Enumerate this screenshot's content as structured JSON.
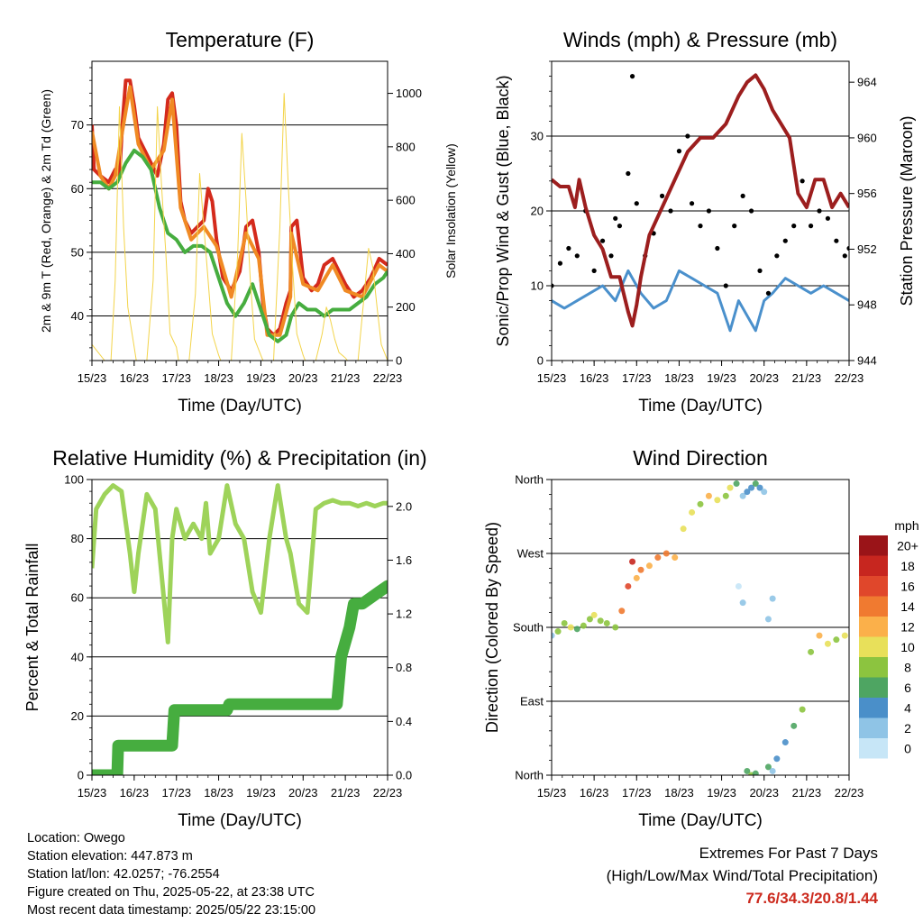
{
  "chart_data": [
    {
      "type": "line",
      "title": "Temperature (F)",
      "xlabel": "Time (Day/UTC)",
      "ylabel": "2m & 9m T (Red, Orange) & 2m Td (Green)",
      "ylabel_right": "Solar Insolation (Yellow)",
      "x_ticks": [
        "15/23",
        "16/23",
        "17/23",
        "18/23",
        "19/23",
        "20/23",
        "21/23",
        "22/23"
      ],
      "xlim": [
        0,
        7
      ],
      "ylim": [
        33,
        80
      ],
      "y_ticks": [
        40,
        50,
        60,
        70
      ],
      "ylim_right": [
        0,
        1120
      ],
      "y_ticks_right": [
        0,
        200,
        400,
        600,
        800,
        1000
      ],
      "grid": "horizontal at left ticks",
      "series": [
        {
          "axis": "left",
          "color": "#d42a1c",
          "x": [
            0,
            0.05,
            0.2,
            0.4,
            0.55,
            0.65,
            0.72,
            0.8,
            0.9,
            1.0,
            1.1,
            1.25,
            1.4,
            1.55,
            1.7,
            1.8,
            1.9,
            2.0,
            2.1,
            2.2,
            2.35,
            2.5,
            2.65,
            2.75,
            2.85,
            2.95,
            3.1,
            3.3,
            3.5,
            3.65,
            3.8,
            3.95,
            4.05,
            4.15,
            4.3,
            4.45,
            4.6,
            4.7,
            4.72,
            4.85,
            5.0,
            5.2,
            5.35,
            5.5,
            5.7,
            5.85,
            6.0,
            6.2,
            6.4,
            6.6,
            6.8,
            7.0
          ],
          "y": [
            70,
            63,
            62,
            61,
            63,
            62,
            70,
            77,
            77,
            73,
            68,
            66,
            64,
            62,
            67,
            74,
            75,
            70,
            58,
            55,
            53,
            54,
            55,
            60,
            58,
            52,
            46,
            44,
            47,
            54,
            55,
            50,
            42,
            38,
            37,
            38,
            42,
            44,
            54,
            55,
            46,
            44,
            45,
            48,
            49,
            47,
            45,
            43,
            44,
            46,
            49,
            48
          ]
        },
        {
          "axis": "left",
          "color": "#f08a24",
          "x": [
            0,
            0.2,
            0.4,
            0.55,
            0.72,
            0.9,
            1.1,
            1.4,
            1.7,
            1.9,
            2.1,
            2.35,
            2.65,
            2.95,
            3.3,
            3.65,
            3.95,
            4.15,
            4.45,
            4.7,
            4.72,
            5.0,
            5.35,
            5.7,
            6.0,
            6.4,
            6.8,
            7.0
          ],
          "y": [
            69,
            62,
            60,
            62,
            69,
            76,
            67,
            63,
            66,
            74,
            57,
            52,
            54,
            51,
            43,
            53,
            49,
            37,
            37,
            43,
            53,
            45,
            44,
            48,
            44,
            43,
            48,
            47
          ]
        },
        {
          "axis": "left",
          "color": "#46ad3f",
          "x": [
            0,
            0.2,
            0.4,
            0.6,
            0.8,
            1.0,
            1.2,
            1.4,
            1.6,
            1.8,
            2.0,
            2.2,
            2.4,
            2.6,
            2.8,
            3.0,
            3.2,
            3.4,
            3.6,
            3.8,
            4.0,
            4.2,
            4.4,
            4.6,
            4.72,
            4.9,
            5.1,
            5.3,
            5.5,
            5.7,
            5.9,
            6.1,
            6.3,
            6.5,
            6.7,
            6.9,
            7.0
          ],
          "y": [
            61,
            61,
            60,
            61,
            64,
            66,
            65,
            63,
            57,
            53,
            52,
            50,
            51,
            51,
            50,
            46,
            42,
            40,
            42,
            45,
            41,
            37,
            36,
            37,
            40,
            42,
            41,
            41,
            40,
            41,
            41,
            41,
            42,
            43,
            45,
            46,
            47
          ]
        },
        {
          "axis": "right",
          "color": "#f3d44a",
          "x": [
            0,
            0.3,
            0.45,
            0.55,
            0.65,
            0.75,
            0.85,
            1.0,
            1.05,
            1.3,
            1.45,
            1.55,
            1.65,
            1.75,
            1.85,
            2.0,
            2.05,
            2.3,
            2.45,
            2.55,
            2.65,
            2.75,
            2.85,
            3.0,
            3.05,
            3.3,
            3.45,
            3.55,
            3.65,
            3.75,
            3.85,
            4.0,
            4.05,
            4.3,
            4.45,
            4.55,
            4.65,
            4.75,
            4.85,
            5.0,
            5.05,
            5.3,
            5.45,
            5.55,
            5.65,
            5.75,
            5.85,
            6.0,
            6.05,
            6.3,
            6.45,
            6.55,
            6.65,
            6.75,
            6.85,
            7.0
          ],
          "y": [
            60,
            0,
            0,
            300,
            950,
            500,
            200,
            50,
            0,
            0,
            300,
            950,
            650,
            400,
            100,
            50,
            0,
            0,
            250,
            700,
            500,
            300,
            100,
            20,
            0,
            0,
            400,
            850,
            600,
            300,
            80,
            20,
            0,
            0,
            500,
            1000,
            650,
            350,
            100,
            20,
            0,
            0,
            100,
            200,
            150,
            80,
            30,
            10,
            0,
            0,
            250,
            420,
            350,
            200,
            60,
            0
          ]
        }
      ]
    },
    {
      "type": "line",
      "title": "Winds (mph) & Pressure (mb)",
      "xlabel": "Time (Day/UTC)",
      "ylabel": "Sonic/Prop Wind & Gust (Blue, Black)",
      "ylabel_right": "Station Pressure (Maroon)",
      "x_ticks": [
        "15/23",
        "16/23",
        "17/23",
        "18/23",
        "19/23",
        "20/23",
        "21/23",
        "22/23"
      ],
      "xlim": [
        0,
        7
      ],
      "ylim": [
        0,
        40
      ],
      "y_ticks": [
        0,
        10,
        20,
        30
      ],
      "ylim_right": [
        944,
        965.5
      ],
      "y_ticks_right": [
        944,
        948,
        952,
        956,
        960,
        964
      ],
      "grid": "horizontal at left ticks",
      "series": [
        {
          "axis": "left",
          "color": "#4a90cc",
          "name_hidden": true,
          "x": [
            0,
            0.3,
            0.6,
            0.9,
            1.2,
            1.5,
            1.8,
            2.1,
            2.4,
            2.7,
            3.0,
            3.3,
            3.6,
            3.9,
            4.2,
            4.4,
            4.6,
            4.8,
            5.0,
            5.2,
            5.5,
            5.8,
            6.1,
            6.4,
            6.7,
            7.0
          ],
          "y": [
            8,
            7,
            8,
            9,
            10,
            8,
            12,
            9,
            7,
            8,
            12,
            11,
            10,
            9,
            4,
            8,
            6,
            4,
            8,
            9,
            11,
            10,
            9,
            10,
            9,
            8
          ]
        },
        {
          "axis": "left",
          "color": "#000000",
          "style": "points",
          "x": [
            0,
            0.2,
            0.4,
            0.6,
            0.8,
            1.0,
            1.2,
            1.4,
            1.5,
            1.6,
            1.8,
            1.9,
            2.0,
            2.2,
            2.4,
            2.6,
            2.8,
            3.0,
            3.2,
            3.3,
            3.5,
            3.7,
            3.9,
            4.1,
            4.3,
            4.5,
            4.7,
            4.9,
            5.1,
            5.3,
            5.5,
            5.7,
            5.9,
            6.1,
            6.3,
            6.5,
            6.7,
            6.9,
            7.0
          ],
          "y": [
            10,
            13,
            15,
            14,
            20,
            12,
            16,
            14,
            19,
            18,
            25,
            38,
            21,
            14,
            17,
            22,
            20,
            28,
            30,
            21,
            18,
            20,
            15,
            10,
            18,
            22,
            20,
            12,
            9,
            14,
            16,
            18,
            24,
            18,
            20,
            19,
            16,
            14,
            15
          ]
        },
        {
          "axis": "right",
          "color": "#9c1e1e",
          "x": [
            0,
            0.2,
            0.4,
            0.55,
            0.65,
            0.8,
            1.0,
            1.2,
            1.4,
            1.6,
            1.8,
            1.9,
            2.0,
            2.1,
            2.3,
            2.6,
            2.9,
            3.2,
            3.5,
            3.8,
            4.1,
            4.4,
            4.6,
            4.8,
            5.0,
            5.2,
            5.4,
            5.6,
            5.7,
            5.8,
            6.0,
            6.2,
            6.4,
            6.6,
            6.8,
            7.0
          ],
          "y": [
            957,
            956.5,
            956.5,
            955,
            957,
            955,
            953,
            952,
            950,
            950,
            947.5,
            946.5,
            948,
            950,
            953,
            955,
            957,
            959,
            960,
            960,
            961,
            963,
            964,
            964.5,
            963.5,
            962,
            961,
            960,
            958,
            956,
            955,
            957,
            957,
            955,
            956,
            955
          ]
        }
      ]
    },
    {
      "type": "line",
      "title": "Relative Humidity (%) & Precipitation (in)",
      "xlabel": "Time (Day/UTC)",
      "ylabel": "Percent & Total Rainfall",
      "x_ticks": [
        "15/23",
        "16/23",
        "17/23",
        "18/23",
        "19/23",
        "20/23",
        "21/23",
        "22/23"
      ],
      "xlim": [
        0,
        7
      ],
      "ylim": [
        0,
        100
      ],
      "y_ticks": [
        0,
        20,
        40,
        60,
        80,
        100
      ],
      "ylim_right": [
        0,
        2.2
      ],
      "y_ticks_right": [
        "0.0",
        "0.4",
        "0.8",
        "1.2",
        "1.6",
        "2.0"
      ],
      "grid": "horizontal at left ticks",
      "series": [
        {
          "axis": "left",
          "color": "#9ed35a",
          "x": [
            0,
            0.1,
            0.3,
            0.5,
            0.7,
            0.9,
            1.0,
            1.1,
            1.3,
            1.5,
            1.7,
            1.8,
            1.9,
            2.0,
            2.2,
            2.4,
            2.6,
            2.7,
            2.8,
            3.0,
            3.2,
            3.4,
            3.6,
            3.8,
            4.0,
            4.2,
            4.4,
            4.6,
            4.7,
            4.9,
            5.1,
            5.3,
            5.5,
            5.7,
            5.9,
            6.1,
            6.3,
            6.5,
            6.7,
            6.9,
            7.0
          ],
          "y": [
            70,
            90,
            95,
            98,
            96,
            75,
            62,
            75,
            95,
            90,
            60,
            45,
            80,
            90,
            80,
            85,
            80,
            92,
            75,
            80,
            98,
            85,
            80,
            62,
            55,
            80,
            98,
            80,
            75,
            58,
            55,
            90,
            92,
            93,
            92,
            92,
            91,
            92,
            91,
            92,
            92
          ]
        },
        {
          "axis": "left",
          "color": "#46ad3f",
          "style": "step-markers",
          "x": [
            0,
            0.6,
            0.62,
            1.9,
            1.95,
            3.2,
            3.25,
            5.8,
            5.9,
            6.1,
            6.2,
            6.4,
            6.6,
            6.8,
            7.0
          ],
          "y": [
            0,
            0,
            10,
            10,
            22,
            22,
            24,
            24,
            40,
            50,
            58,
            58,
            60,
            62,
            64
          ]
        }
      ]
    },
    {
      "type": "scatter",
      "title": "Wind Direction",
      "xlabel": "Time (Day/UTC)",
      "ylabel": "Direction (Colored By Speed)",
      "x_ticks": [
        "15/23",
        "16/23",
        "17/23",
        "18/23",
        "19/23",
        "20/23",
        "21/23",
        "22/23"
      ],
      "xlim": [
        0,
        7
      ],
      "ylim": [
        0,
        360
      ],
      "y_ticks": [
        "North",
        "East",
        "South",
        "West",
        "North"
      ],
      "y_tick_values": [
        0,
        90,
        180,
        270,
        360
      ],
      "grid": "horizontal at ticks",
      "colorbar_title": "mph",
      "colorbar_labels": [
        "0",
        "2",
        "4",
        "6",
        "8",
        "10",
        "12",
        "14",
        "16",
        "18",
        "20+"
      ],
      "colorbar_colors": [
        "#c7e6f7",
        "#8fc4e6",
        "#4a8fc9",
        "#4ea562",
        "#8cc43f",
        "#e8e05a",
        "#fbb04a",
        "#f07a30",
        "#e0472b",
        "#c7261f",
        "#9a1418"
      ],
      "points": {
        "x": [
          0.0,
          0.15,
          0.3,
          0.45,
          0.6,
          0.75,
          0.9,
          1.0,
          1.15,
          1.3,
          1.5,
          1.65,
          1.8,
          1.9,
          2.0,
          2.1,
          2.3,
          2.5,
          2.7,
          2.9,
          3.1,
          3.3,
          3.5,
          3.7,
          3.9,
          4.1,
          4.2,
          4.35,
          4.5,
          4.6,
          4.7,
          4.8,
          4.9,
          5.0,
          5.1,
          5.2,
          5.3,
          5.5,
          5.7,
          5.9,
          6.1,
          6.3,
          6.5,
          6.7,
          6.9,
          4.4,
          4.5,
          4.6,
          4.7,
          4.8,
          5.1,
          5.2
        ],
        "y": [
          170,
          175,
          185,
          180,
          178,
          182,
          190,
          195,
          188,
          185,
          180,
          200,
          230,
          260,
          240,
          250,
          255,
          265,
          270,
          265,
          300,
          320,
          330,
          340,
          335,
          340,
          350,
          355,
          340,
          345,
          350,
          355,
          350,
          345,
          10,
          5,
          20,
          40,
          60,
          80,
          150,
          170,
          160,
          165,
          170,
          230,
          210,
          5,
          0,
          2,
          190,
          215
        ],
        "speed": [
          3,
          8,
          9,
          10,
          6,
          8,
          9,
          11,
          9,
          8,
          9,
          14,
          16,
          18,
          12,
          14,
          13,
          15,
          15,
          13,
          11,
          10,
          9,
          12,
          10,
          8,
          11,
          7,
          3,
          4,
          5,
          6,
          4,
          2,
          6,
          3,
          4,
          4,
          7,
          8,
          8,
          12,
          10,
          9,
          10,
          1,
          2,
          7,
          8,
          6,
          2,
          3
        ]
      }
    }
  ],
  "info": {
    "location": "Location: Owego",
    "elevation": "Station elevation: 447.873 m",
    "latlon": "Station lat/lon: 42.0257; -76.2554",
    "created": "Figure created on Thu, 2025-05-22, at 23:38 UTC",
    "timestamp": "Most recent data timestamp: 2025/05/22 23:15:00"
  },
  "extremes": {
    "title": "Extremes For Past 7 Days",
    "subtitle": "(High/Low/Max Wind/Total Precipitation)",
    "values": "77.6/34.3/20.8/1.44"
  }
}
